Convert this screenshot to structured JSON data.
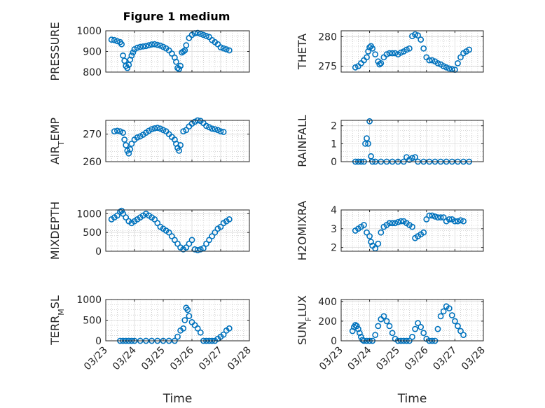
{
  "figure": {
    "title": "Figure 1 medium"
  },
  "colors": {
    "marker": "#0072BD",
    "axis": "#262626",
    "grid": "#b3b3b3"
  },
  "chart_data": [
    {
      "type": "scatter",
      "ylabel": "PRESSURE",
      "ylim": [
        800,
        1000
      ],
      "yticks": [
        "800",
        "900",
        "1000"
      ],
      "xlim": [
        0,
        5
      ],
      "xticks": [
        "03/23",
        "03/24",
        "03/25",
        "03/26",
        "03/27",
        "03/28"
      ],
      "xlabel": "",
      "title": "Figure 1 medium",
      "grid": true,
      "x": [
        0.2,
        0.3,
        0.4,
        0.5,
        0.55,
        0.6,
        0.65,
        0.7,
        0.75,
        0.8,
        0.85,
        0.9,
        0.95,
        1.0,
        1.1,
        1.2,
        1.3,
        1.4,
        1.5,
        1.6,
        1.7,
        1.8,
        1.9,
        2.0,
        2.1,
        2.2,
        2.3,
        2.4,
        2.45,
        2.5,
        2.55,
        2.6,
        2.65,
        2.7,
        2.75,
        2.8,
        2.9,
        3.0,
        3.1,
        3.2,
        3.3,
        3.4,
        3.5,
        3.6,
        3.7,
        3.8,
        3.9,
        4.0,
        4.1,
        4.2,
        4.3
      ],
      "y": [
        957,
        955,
        950,
        945,
        935,
        880,
        855,
        830,
        820,
        835,
        860,
        880,
        895,
        910,
        918,
        922,
        924,
        926,
        930,
        934,
        935,
        932,
        928,
        922,
        915,
        905,
        890,
        870,
        850,
        820,
        815,
        830,
        895,
        900,
        905,
        930,
        965,
        980,
        988,
        990,
        985,
        980,
        975,
        970,
        955,
        945,
        935,
        920,
        915,
        910,
        905
      ]
    },
    {
      "type": "scatter",
      "ylabel": "THETA",
      "ylim": [
        274,
        281
      ],
      "yticks": [
        "275",
        "280"
      ],
      "xlim": [
        0,
        5
      ],
      "xticks": [
        "03/23",
        "03/24",
        "03/25",
        "03/26",
        "03/27",
        "03/28"
      ],
      "xlabel": "",
      "grid": true,
      "x": [
        0.5,
        0.6,
        0.7,
        0.8,
        0.9,
        0.95,
        1.0,
        1.05,
        1.1,
        1.2,
        1.3,
        1.35,
        1.4,
        1.5,
        1.6,
        1.7,
        1.8,
        1.9,
        2.0,
        2.1,
        2.2,
        2.3,
        2.4,
        2.5,
        2.6,
        2.7,
        2.8,
        2.9,
        3.0,
        3.1,
        3.2,
        3.3,
        3.4,
        3.5,
        3.6,
        3.7,
        3.8,
        3.9,
        4.0,
        4.1,
        4.2,
        4.3,
        4.4,
        4.5
      ],
      "y": [
        274.8,
        275.0,
        275.5,
        276.0,
        276.5,
        277.5,
        278.2,
        278.4,
        278.0,
        277.0,
        275.8,
        275.3,
        275.5,
        276.5,
        277.0,
        277.2,
        277.2,
        277.2,
        277.0,
        277.3,
        277.5,
        277.8,
        278.0,
        280.1,
        280.4,
        280.2,
        279.5,
        278.0,
        276.5,
        276.0,
        276.0,
        275.8,
        275.5,
        275.3,
        275.0,
        274.8,
        274.6,
        274.5,
        274.4,
        275.5,
        276.5,
        277.2,
        277.5,
        277.8
      ]
    },
    {
      "type": "scatter",
      "ylabel": "AIR_TEMP",
      "ylim": [
        260,
        275
      ],
      "yticks": [
        "260",
        "270"
      ],
      "xlim": [
        0,
        5
      ],
      "xticks": [
        "03/23",
        "03/24",
        "03/25",
        "03/26",
        "03/27",
        "03/28"
      ],
      "xlabel": "",
      "grid": true,
      "x": [
        0.3,
        0.4,
        0.5,
        0.6,
        0.65,
        0.7,
        0.75,
        0.8,
        0.85,
        0.9,
        1.0,
        1.1,
        1.2,
        1.3,
        1.4,
        1.5,
        1.6,
        1.7,
        1.8,
        1.9,
        2.0,
        2.1,
        2.2,
        2.3,
        2.4,
        2.45,
        2.5,
        2.55,
        2.6,
        2.7,
        2.8,
        2.9,
        3.0,
        3.1,
        3.2,
        3.3,
        3.4,
        3.5,
        3.6,
        3.7,
        3.8,
        3.9,
        4.0,
        4.1
      ],
      "y": [
        271.0,
        271.2,
        271.0,
        270.5,
        268.0,
        266.0,
        264.0,
        263.0,
        264.5,
        266.5,
        268.0,
        268.8,
        269.2,
        269.8,
        270.5,
        271.2,
        271.8,
        272.1,
        272.3,
        272.0,
        271.5,
        271.0,
        270.0,
        269.0,
        268.0,
        266.5,
        265.0,
        264.0,
        266.0,
        271.0,
        271.5,
        272.8,
        273.8,
        274.5,
        275.0,
        274.8,
        274.0,
        273.0,
        272.5,
        272.0,
        271.8,
        271.5,
        271.0,
        270.8
      ]
    },
    {
      "type": "scatter",
      "ylabel": "RAINFALL",
      "ylim": [
        0,
        2.3
      ],
      "yticks": [
        "0",
        "1",
        "2"
      ],
      "xlim": [
        0,
        5
      ],
      "xticks": [
        "03/23",
        "03/24",
        "03/25",
        "03/26",
        "03/27",
        "03/28"
      ],
      "xlabel": "",
      "grid": true,
      "x": [
        0.5,
        0.6,
        0.7,
        0.8,
        0.85,
        0.9,
        0.95,
        1.0,
        1.05,
        1.1,
        1.2,
        1.4,
        1.6,
        1.8,
        2.0,
        2.2,
        2.3,
        2.4,
        2.5,
        2.6,
        2.7,
        2.9,
        3.1,
        3.3,
        3.5,
        3.7,
        3.9,
        4.1,
        4.3,
        4.5
      ],
      "y": [
        0,
        0,
        0,
        0,
        1.0,
        1.3,
        1.0,
        2.25,
        0.3,
        0,
        0,
        0,
        0,
        0,
        0,
        0,
        0.25,
        0.1,
        0.2,
        0.25,
        0,
        0,
        0,
        0,
        0,
        0,
        0,
        0,
        0,
        0
      ]
    },
    {
      "type": "scatter",
      "ylabel": "MIXDEPTH",
      "ylim": [
        0,
        1100
      ],
      "yticks": [
        "0",
        "500",
        "1000"
      ],
      "xlim": [
        0,
        5
      ],
      "xticks": [
        "03/23",
        "03/24",
        "03/25",
        "03/26",
        "03/27",
        "03/28"
      ],
      "xlabel": "",
      "grid": true,
      "x": [
        0.2,
        0.3,
        0.4,
        0.5,
        0.55,
        0.6,
        0.7,
        0.8,
        0.9,
        1.0,
        1.1,
        1.2,
        1.3,
        1.4,
        1.5,
        1.6,
        1.7,
        1.8,
        1.9,
        2.0,
        2.1,
        2.2,
        2.3,
        2.4,
        2.5,
        2.6,
        2.7,
        2.8,
        2.9,
        3.0,
        3.1,
        3.2,
        3.3,
        3.4,
        3.5,
        3.6,
        3.7,
        3.8,
        3.9,
        4.0,
        4.1,
        4.2,
        4.3
      ],
      "y": [
        850,
        900,
        950,
        1050,
        1080,
        1000,
        900,
        800,
        750,
        800,
        850,
        900,
        950,
        1000,
        950,
        900,
        850,
        750,
        650,
        600,
        550,
        500,
        400,
        300,
        200,
        100,
        50,
        100,
        200,
        300,
        50,
        30,
        50,
        80,
        200,
        300,
        400,
        500,
        600,
        650,
        750,
        800,
        850
      ]
    },
    {
      "type": "scatter",
      "ylabel": "H2OMIXRA",
      "ylim": [
        1.8,
        4.0
      ],
      "yticks": [
        "2",
        "3",
        "4"
      ],
      "xlim": [
        0,
        5
      ],
      "xticks": [
        "03/23",
        "03/24",
        "03/25",
        "03/26",
        "03/27",
        "03/28"
      ],
      "xlabel": "",
      "grid": true,
      "x": [
        0.5,
        0.6,
        0.7,
        0.8,
        0.9,
        1.0,
        1.05,
        1.1,
        1.2,
        1.3,
        1.4,
        1.5,
        1.6,
        1.7,
        1.8,
        1.9,
        2.0,
        2.1,
        2.2,
        2.3,
        2.4,
        2.5,
        2.6,
        2.7,
        2.8,
        2.9,
        3.0,
        3.1,
        3.2,
        3.3,
        3.4,
        3.5,
        3.6,
        3.7,
        3.8,
        3.9,
        4.0,
        4.1,
        4.2,
        4.3
      ],
      "y": [
        2.9,
        3.0,
        3.1,
        3.2,
        2.8,
        2.6,
        2.3,
        2.1,
        1.95,
        2.2,
        2.8,
        3.1,
        3.2,
        3.3,
        3.3,
        3.3,
        3.35,
        3.4,
        3.4,
        3.3,
        3.2,
        3.1,
        2.5,
        2.6,
        2.7,
        2.8,
        3.5,
        3.7,
        3.7,
        3.65,
        3.6,
        3.6,
        3.6,
        3.4,
        3.5,
        3.5,
        3.4,
        3.4,
        3.45,
        3.4
      ]
    },
    {
      "type": "scatter",
      "ylabel": "TERR_MSL",
      "ylim": [
        0,
        1000
      ],
      "yticks": [
        "0",
        "500",
        "1000"
      ],
      "xlim": [
        0,
        5
      ],
      "xticks": [
        "03/23",
        "03/24",
        "03/25",
        "03/26",
        "03/27",
        "03/28"
      ],
      "xlabel": "Time",
      "grid": true,
      "x": [
        0.5,
        0.6,
        0.7,
        0.8,
        0.9,
        1.0,
        1.2,
        1.4,
        1.6,
        1.8,
        2.0,
        2.2,
        2.4,
        2.5,
        2.6,
        2.7,
        2.75,
        2.8,
        2.85,
        2.9,
        3.0,
        3.1,
        3.2,
        3.3,
        3.4,
        3.5,
        3.6,
        3.7,
        3.8,
        3.9,
        4.0,
        4.1,
        4.2,
        4.3
      ],
      "y": [
        0,
        0,
        0,
        0,
        0,
        0,
        0,
        0,
        0,
        0,
        0,
        0,
        0,
        100,
        250,
        300,
        500,
        800,
        750,
        600,
        450,
        380,
        300,
        200,
        0,
        0,
        0,
        0,
        0,
        50,
        100,
        150,
        250,
        300
      ]
    },
    {
      "type": "scatter",
      "ylabel": "SUN_FLUX",
      "ylim": [
        0,
        420
      ],
      "yticks": [
        "0",
        "200",
        "400"
      ],
      "xlim": [
        0,
        5
      ],
      "xticks": [
        "03/23",
        "03/24",
        "03/25",
        "03/26",
        "03/27",
        "03/28"
      ],
      "xlabel": "Time",
      "grid": true,
      "x": [
        0.4,
        0.45,
        0.5,
        0.55,
        0.6,
        0.65,
        0.7,
        0.75,
        0.8,
        0.9,
        1.0,
        1.1,
        1.2,
        1.3,
        1.4,
        1.5,
        1.6,
        1.7,
        1.8,
        1.9,
        2.0,
        2.1,
        2.2,
        2.3,
        2.4,
        2.5,
        2.6,
        2.7,
        2.8,
        2.9,
        3.0,
        3.1,
        3.2,
        3.3,
        3.4,
        3.5,
        3.6,
        3.7,
        3.8,
        3.9,
        4.0,
        4.1,
        4.2,
        4.3
      ],
      "y": [
        100,
        140,
        160,
        150,
        120,
        80,
        40,
        10,
        0,
        0,
        0,
        0,
        60,
        150,
        220,
        250,
        200,
        150,
        80,
        20,
        0,
        0,
        0,
        0,
        0,
        40,
        120,
        180,
        140,
        80,
        20,
        0,
        0,
        0,
        120,
        250,
        300,
        350,
        330,
        260,
        200,
        150,
        100,
        60
      ]
    }
  ]
}
